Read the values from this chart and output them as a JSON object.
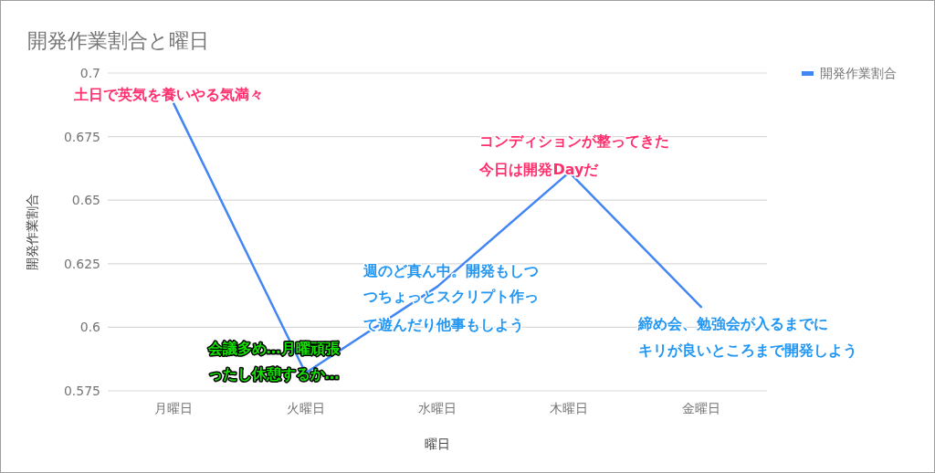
{
  "chart_data": {
    "type": "line",
    "title": "開発作業割合と曜日",
    "xlabel": "曜日",
    "ylabel": "開発作業割合",
    "categories": [
      "月曜日",
      "火曜日",
      "水曜日",
      "木曜日",
      "金曜日"
    ],
    "series": [
      {
        "name": "開発作業割合",
        "color": "#4285f4",
        "values": [
          0.688,
          0.582,
          0.616,
          0.661,
          0.608
        ]
      }
    ],
    "ylim": [
      0.575,
      0.7
    ],
    "yticks": [
      0.575,
      0.6,
      0.625,
      0.65,
      0.675,
      0.7
    ],
    "grid": "y",
    "legend": "top right",
    "marker": "none",
    "line_style": "solid",
    "annotations": [
      {
        "text": "土日で英気を養いやる気満々",
        "x": "月曜日",
        "y": 0.688
      },
      {
        "text": "会議多め…月曜頑張ったし休憩するか…",
        "x": "火曜日",
        "y": 0.582
      },
      {
        "text": "週のど真ん中。開発もしつつちょっとスクリプト作って遊んだり他事もしよう",
        "x": "水曜日",
        "y": 0.616
      },
      {
        "text": "コンディションが整ってきた今日は開発Dayだ",
        "x": "木曜日",
        "y": 0.661
      },
      {
        "text": "締め会、勉強会が入るまでにキリが良いところまで開発しよう",
        "x": "金曜日",
        "y": 0.608
      }
    ]
  }
}
